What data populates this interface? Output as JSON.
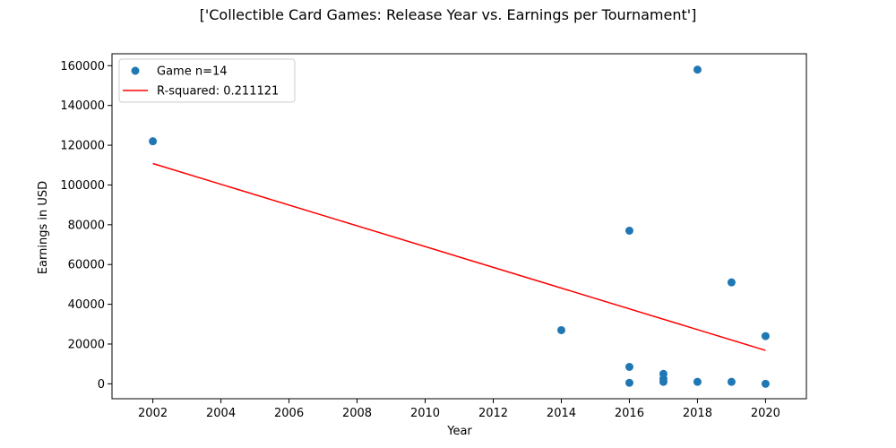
{
  "chart_data": {
    "type": "scatter",
    "title": "['Collectible Card Games: Release Year vs. Earnings per Tournament']",
    "xlabel": "Year",
    "ylabel": "Earnings in USD",
    "xlim": [
      2000.8,
      2021.2
    ],
    "ylim": [
      -7500,
      166000
    ],
    "xticks": [
      2002,
      2004,
      2006,
      2008,
      2010,
      2012,
      2014,
      2016,
      2018,
      2020
    ],
    "yticks": [
      0,
      20000,
      40000,
      60000,
      80000,
      100000,
      120000,
      140000,
      160000
    ],
    "legend_position": "top-left",
    "grid": false,
    "series": [
      {
        "name": "Game n=14",
        "kind": "scatter",
        "color": "#1f77b4",
        "points": [
          {
            "x": 2002,
            "y": 122000
          },
          {
            "x": 2014,
            "y": 27000
          },
          {
            "x": 2016,
            "y": 77000
          },
          {
            "x": 2016,
            "y": 8500
          },
          {
            "x": 2016,
            "y": 500
          },
          {
            "x": 2017,
            "y": 5000
          },
          {
            "x": 2017,
            "y": 2500
          },
          {
            "x": 2017,
            "y": 1000
          },
          {
            "x": 2018,
            "y": 158000
          },
          {
            "x": 2018,
            "y": 1000
          },
          {
            "x": 2019,
            "y": 51000
          },
          {
            "x": 2019,
            "y": 1000
          },
          {
            "x": 2020,
            "y": 24000
          },
          {
            "x": 2020,
            "y": 0
          }
        ]
      },
      {
        "name": "R-squared: 0.211121",
        "kind": "line",
        "color": "#ff0000",
        "points": [
          {
            "x": 2002,
            "y": 110800
          },
          {
            "x": 2020,
            "y": 16800
          }
        ]
      }
    ]
  }
}
